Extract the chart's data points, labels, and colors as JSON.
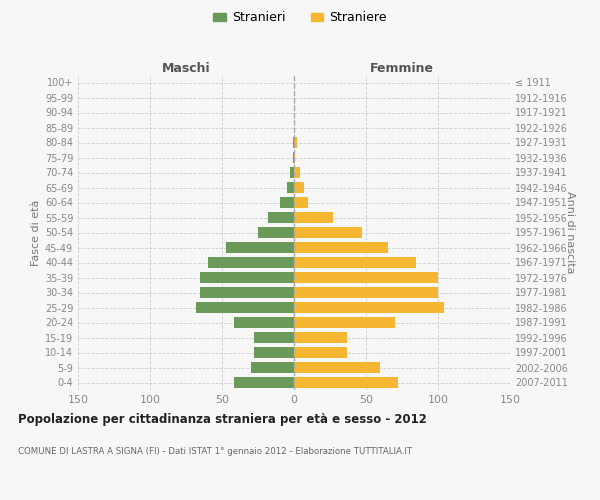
{
  "age_groups": [
    "0-4",
    "5-9",
    "10-14",
    "15-19",
    "20-24",
    "25-29",
    "30-34",
    "35-39",
    "40-44",
    "45-49",
    "50-54",
    "55-59",
    "60-64",
    "65-69",
    "70-74",
    "75-79",
    "80-84",
    "85-89",
    "90-94",
    "95-99",
    "100+"
  ],
  "birth_years": [
    "2007-2011",
    "2002-2006",
    "1997-2001",
    "1992-1996",
    "1987-1991",
    "1982-1986",
    "1977-1981",
    "1972-1976",
    "1967-1971",
    "1962-1966",
    "1957-1961",
    "1952-1956",
    "1947-1951",
    "1942-1946",
    "1937-1941",
    "1932-1936",
    "1927-1931",
    "1922-1926",
    "1917-1921",
    "1912-1916",
    "≤ 1911"
  ],
  "maschi": [
    42,
    30,
    28,
    28,
    42,
    68,
    65,
    65,
    60,
    47,
    25,
    18,
    10,
    5,
    3,
    1,
    1,
    0,
    0,
    0,
    0
  ],
  "femmine": [
    72,
    60,
    37,
    37,
    70,
    104,
    100,
    100,
    85,
    65,
    47,
    27,
    10,
    7,
    4,
    1,
    2,
    0,
    0,
    0,
    0
  ],
  "maschi_color": "#6a9a5a",
  "femmine_color": "#f5b731",
  "grid_color": "#cccccc",
  "title": "Popolazione per cittadinanza straniera per età e sesso - 2012",
  "subtitle": "COMUNE DI LASTRA A SIGNA (FI) - Dati ISTAT 1° gennaio 2012 - Elaborazione TUTTITALIA.IT",
  "ylabel_left": "Fasce di età",
  "ylabel_right": "Anni di nascita",
  "xlabel_left": "Maschi",
  "xlabel_right": "Femmine",
  "legend_maschi": "Stranieri",
  "legend_femmine": "Straniere",
  "xlim": 150,
  "background_color": "#f7f7f7"
}
